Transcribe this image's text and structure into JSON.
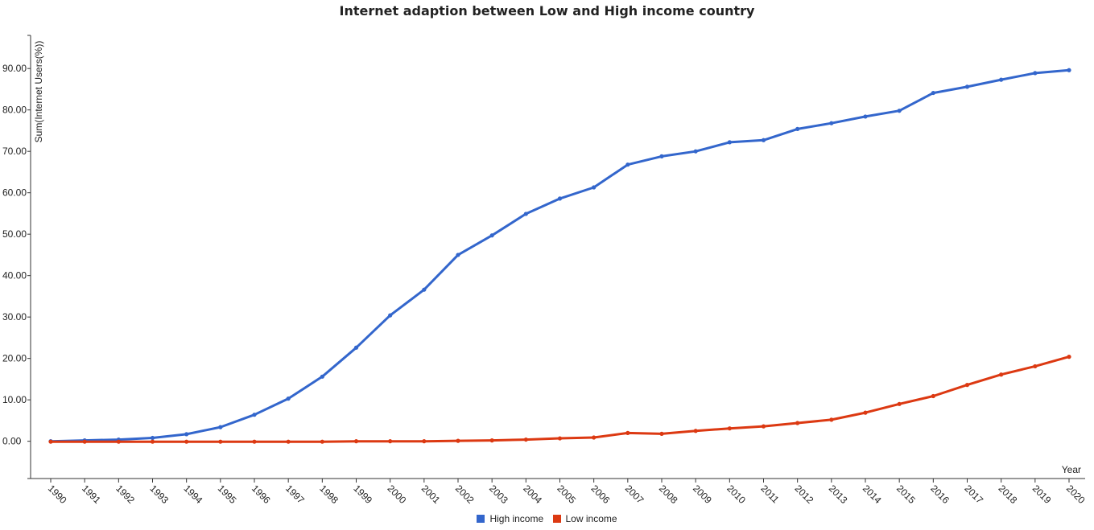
{
  "chart_data": {
    "type": "line",
    "title": "Internet adaption between Low and High income country",
    "xlabel": "Year",
    "ylabel": "Sum(Internet Users(%))",
    "ylim": [
      -9,
      98
    ],
    "yticks": [
      0,
      10,
      20,
      30,
      40,
      50,
      60,
      70,
      80,
      90
    ],
    "ytick_labels": [
      "0.00",
      "10.00",
      "20.00",
      "30.00",
      "40.00",
      "50.00",
      "60.00",
      "70.00",
      "80.00",
      "90.00"
    ],
    "x": [
      "1990",
      "1991",
      "1992",
      "1993",
      "1994",
      "1995",
      "1996",
      "1997",
      "1998",
      "1999",
      "2000",
      "2001",
      "2002",
      "2003",
      "2004",
      "2005",
      "2006",
      "2007",
      "2008",
      "2009",
      "2010",
      "2011",
      "2012",
      "2013",
      "2014",
      "2015",
      "2016",
      "2017",
      "2018",
      "2019",
      "2020"
    ],
    "series": [
      {
        "name": "High income",
        "color": "#3366cc",
        "values": [
          0.0,
          0.2,
          0.4,
          0.8,
          1.7,
          3.4,
          6.4,
          10.3,
          15.6,
          22.6,
          30.4,
          36.6,
          45.0,
          49.7,
          54.9,
          58.6,
          61.3,
          66.8,
          68.8,
          70.0,
          72.2,
          72.7,
          75.4,
          76.8,
          78.4,
          79.8,
          84.1,
          85.6,
          87.3,
          88.9,
          89.6
        ]
      },
      {
        "name": "Low income",
        "color": "#dc3912",
        "values": [
          -0.1,
          -0.1,
          -0.1,
          -0.1,
          -0.1,
          -0.1,
          -0.1,
          -0.1,
          -0.1,
          0.0,
          0.0,
          0.0,
          0.1,
          0.2,
          0.4,
          0.7,
          0.9,
          2.0,
          1.8,
          2.5,
          3.1,
          3.6,
          4.4,
          5.2,
          6.9,
          9.0,
          10.9,
          13.6,
          16.1,
          18.1,
          20.4
        ]
      }
    ],
    "grid": false,
    "legend_position": "bottom-center"
  }
}
